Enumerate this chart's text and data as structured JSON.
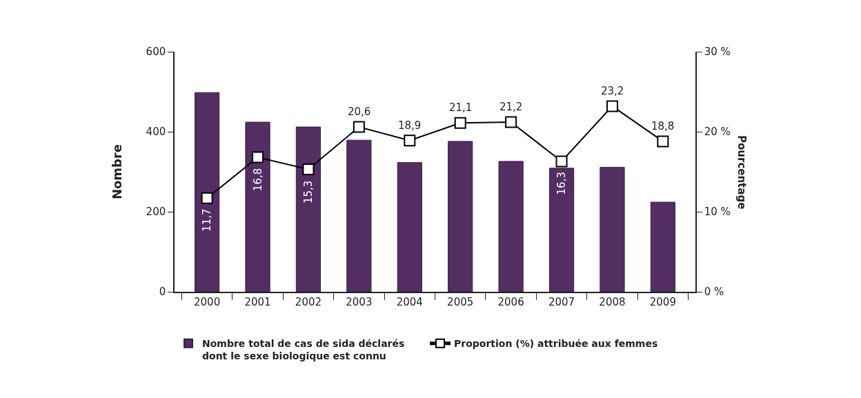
{
  "chart_data": {
    "type": "bar",
    "categories": [
      "2000",
      "2001",
      "2002",
      "2003",
      "2004",
      "2005",
      "2006",
      "2007",
      "2008",
      "2009"
    ],
    "series": [
      {
        "name": "Nombre total de cas de sida déclarés dont le sexe biologique est connu",
        "color": "#532e63",
        "values": [
          498,
          424,
          412,
          379,
          323,
          376,
          326,
          309,
          311,
          224
        ]
      },
      {
        "name": "Proportion (%) attribuée aux femmes",
        "type": "line",
        "axis": "y2",
        "color": "#000000",
        "values": [
          11.7,
          16.8,
          15.3,
          20.6,
          18.9,
          21.1,
          21.2,
          16.3,
          23.2,
          18.8
        ],
        "value_labels": [
          "11,7",
          "16,8",
          "15,3",
          "20,6",
          "18,9",
          "21,1",
          "21,2",
          "16,3",
          "23,2",
          "18,8"
        ]
      }
    ],
    "ylabel": "Nombre",
    "y2label": "Pourcentage",
    "ylim": [
      0,
      600
    ],
    "yticks": [
      0,
      200,
      400,
      600
    ],
    "y2lim": [
      0,
      30
    ],
    "y2ticks": [
      {
        "value": 0,
        "label": "0 %"
      },
      {
        "value": 10,
        "label": "10 %"
      },
      {
        "value": 20,
        "label": "20 %"
      },
      {
        "value": 30,
        "label": "30 %"
      }
    ],
    "marker": "square",
    "line_style": "solid",
    "legend": "bottom"
  }
}
